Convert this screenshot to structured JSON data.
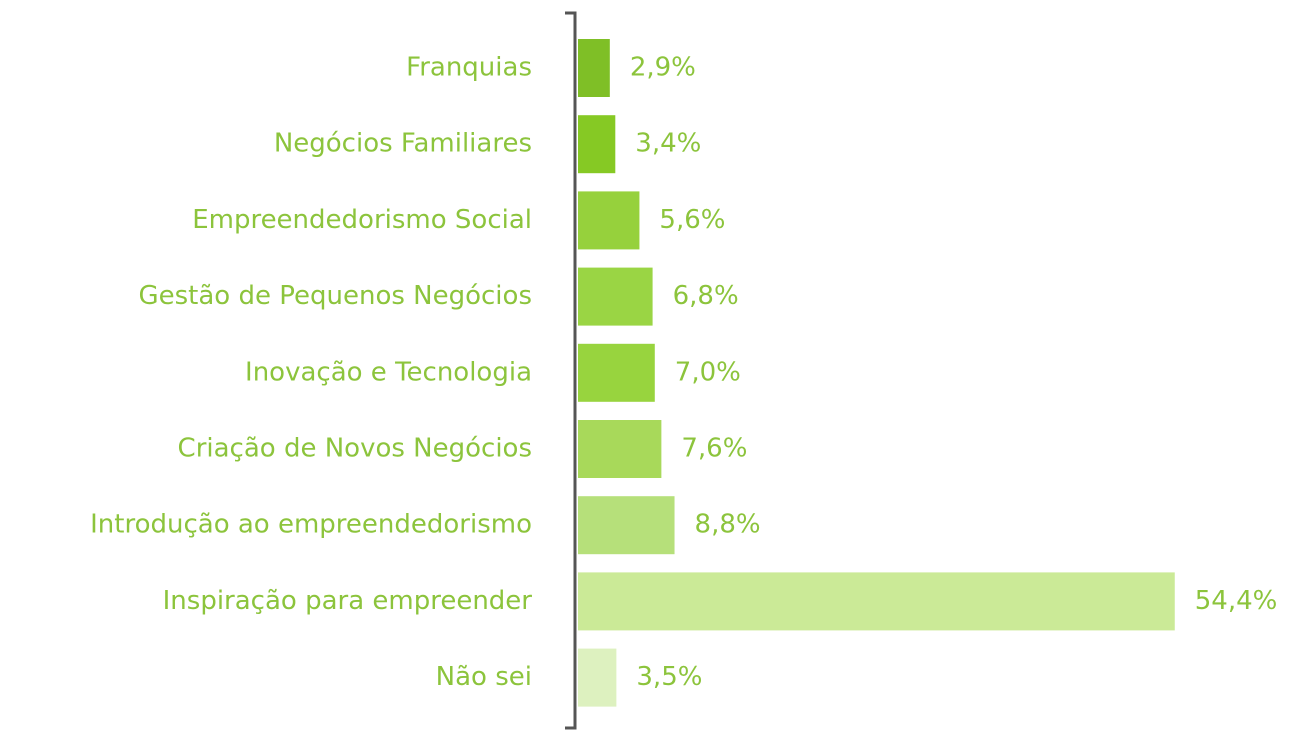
{
  "chart_data": {
    "type": "barh",
    "categories": [
      "Franquias",
      "Negócios Familiares",
      "Empreendedorismo Social",
      "Gestão de Pequenos Negócios",
      "Inovação e Tecnologia",
      "Criação de Novos Negócios",
      "Introdução ao empreendedorismo",
      "Inspiração para empreender",
      "Não sei"
    ],
    "values": [
      2.9,
      3.4,
      5.6,
      6.8,
      7.0,
      7.6,
      8.8,
      54.4,
      3.5
    ],
    "value_labels": [
      "2,9%",
      "3,4%",
      "5,6%",
      "6,8%",
      "7,0%",
      "7,6%",
      "8,8%",
      "54,4%",
      "3,5%"
    ],
    "colors": [
      "#7fbf26",
      "#86c924",
      "#96d13c",
      "#9ad544",
      "#98d43e",
      "#a8d95a",
      "#b6e07a",
      "#cbea97",
      "#ddf1bf"
    ]
  }
}
